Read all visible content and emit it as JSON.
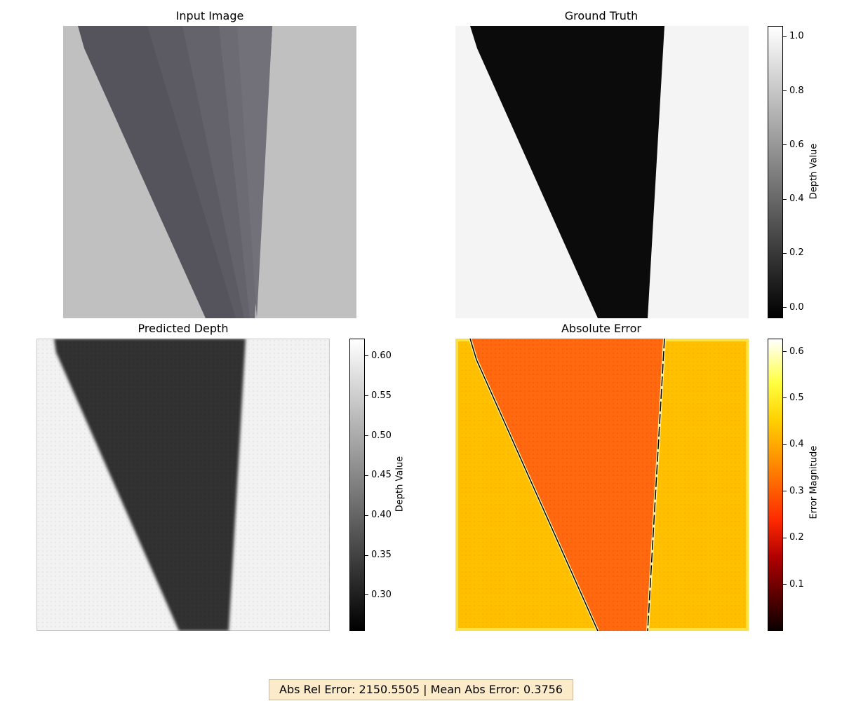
{
  "panels": {
    "input_title": "Input Image",
    "gt_title": "Ground Truth",
    "pred_title": "Predicted Depth",
    "err_title": "Absolute Error"
  },
  "colorbars": {
    "gt": {
      "label": "Depth Value",
      "ticks": [
        "0.0",
        "0.2",
        "0.4",
        "0.6",
        "0.8",
        "1.0"
      ],
      "range": [
        -0.04,
        1.04
      ],
      "cmap": "gray"
    },
    "pred": {
      "label": "Depth Value",
      "ticks": [
        "0.30",
        "0.35",
        "0.40",
        "0.45",
        "0.50",
        "0.55",
        "0.60"
      ],
      "range": [
        0.255,
        0.622
      ],
      "cmap": "gray"
    },
    "err": {
      "label": "Error Magnitude",
      "ticks": [
        "0.1",
        "0.2",
        "0.3",
        "0.4",
        "0.5",
        "0.6"
      ],
      "range": [
        0.0,
        0.628
      ],
      "cmap": "hot"
    }
  },
  "footer": {
    "text": "Abs Rel Error: 2150.5505 | Mean Abs Error: 0.3756"
  },
  "colors": {
    "input_bg": "#c0c0c0",
    "input_shape": "#55545d",
    "gt_bg": "#f4f4f4",
    "gt_shape": "#0b0b0b",
    "pred_bg": "#f2f2f2",
    "pred_shape": "#2e2e2e",
    "err_bg": "#ffc000",
    "err_shape": "#ff6a10",
    "footer_bg": "#fcebc9"
  },
  "chart_data": [
    {
      "type": "heatmap",
      "title": "Input Image",
      "description_values": {
        "background": 0.75,
        "object": 0.35
      }
    },
    {
      "type": "heatmap",
      "title": "Ground Truth",
      "zlabel": "Depth Value",
      "zlim": [
        -0.04,
        1.04
      ],
      "values": {
        "background": 0.96,
        "object": 0.03
      }
    },
    {
      "type": "heatmap",
      "title": "Predicted Depth",
      "zlabel": "Depth Value",
      "zlim": [
        0.255,
        0.622
      ],
      "values": {
        "background": 0.6,
        "object": 0.28
      }
    },
    {
      "type": "heatmap",
      "title": "Absolute Error",
      "zlabel": "Error Magnitude",
      "zlim": [
        0.0,
        0.628
      ],
      "values": {
        "background": 0.38,
        "object": 0.27,
        "edge": 0.0
      }
    }
  ]
}
